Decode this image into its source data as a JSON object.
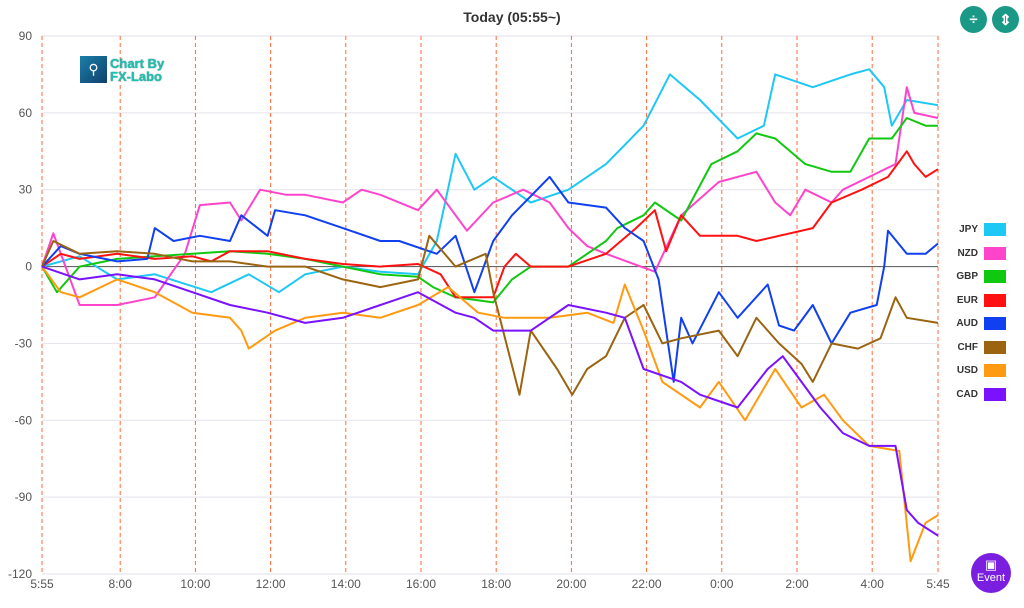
{
  "header": {
    "title": "Today  (05:55~)",
    "buttons": [
      {
        "icon": "compress-vertical-icon",
        "glyph": "÷"
      },
      {
        "icon": "expand-vertical-icon",
        "glyph": "⇕"
      }
    ]
  },
  "logo": {
    "line1": "Chart By",
    "line2": "FX-Labo"
  },
  "event_button": {
    "label": "Event",
    "icon": "calendar-icon"
  },
  "colors": {
    "JPY": "#1ec8f5",
    "NZD": "#ff44cc",
    "GBP": "#11c811",
    "EUR": "#ff1111",
    "AUD": "#1040f0",
    "CHF": "#9a6410",
    "USD": "#ff9a11",
    "CAD": "#7a11ff",
    "grid": "#e2e2ea",
    "vline": "#ff6a3a"
  },
  "chart_data": {
    "type": "line",
    "title": "Today  (05:55~)",
    "xlabel": "",
    "ylabel": "",
    "x_unit": "hours since 05:55",
    "xlim": [
      0,
      23.83
    ],
    "ylim": [
      -120,
      90
    ],
    "yticks": [
      90,
      60,
      30,
      0,
      -30,
      -60,
      -90,
      -120
    ],
    "xticks": [
      {
        "h": 0,
        "label": "5:55"
      },
      {
        "h": 2.08,
        "label": "8:00"
      },
      {
        "h": 4.08,
        "label": "10:00"
      },
      {
        "h": 6.08,
        "label": "12:00"
      },
      {
        "h": 8.08,
        "label": "14:00"
      },
      {
        "h": 10.08,
        "label": "16:00"
      },
      {
        "h": 12.08,
        "label": "18:00"
      },
      {
        "h": 14.08,
        "label": "20:00"
      },
      {
        "h": 16.08,
        "label": "22:00"
      },
      {
        "h": 18.08,
        "label": "0:00"
      },
      {
        "h": 20.08,
        "label": "2:00"
      },
      {
        "h": 22.08,
        "label": "4:00"
      },
      {
        "h": 23.83,
        "label": "5:45"
      }
    ],
    "legend_position": "right",
    "grid": true,
    "series": [
      {
        "name": "JPY",
        "points": [
          [
            0,
            0
          ],
          [
            1,
            4
          ],
          [
            2,
            -5
          ],
          [
            3,
            -3
          ],
          [
            4.5,
            -10
          ],
          [
            5.5,
            -3
          ],
          [
            6.3,
            -10
          ],
          [
            7,
            -3
          ],
          [
            8,
            0
          ],
          [
            9,
            -2
          ],
          [
            10,
            -3
          ],
          [
            10.5,
            10
          ],
          [
            11,
            44
          ],
          [
            11.5,
            30
          ],
          [
            12,
            35
          ],
          [
            13,
            25
          ],
          [
            14,
            30
          ],
          [
            15,
            40
          ],
          [
            16,
            55
          ],
          [
            16.7,
            75
          ],
          [
            17.5,
            65
          ],
          [
            18.5,
            50
          ],
          [
            19.2,
            55
          ],
          [
            19.5,
            75
          ],
          [
            20.5,
            70
          ],
          [
            21.5,
            75
          ],
          [
            22,
            77
          ],
          [
            22.4,
            70
          ],
          [
            22.6,
            55
          ],
          [
            23,
            65
          ],
          [
            23.83,
            63
          ]
        ]
      },
      {
        "name": "NZD",
        "points": [
          [
            0,
            0
          ],
          [
            0.3,
            13
          ],
          [
            1,
            -15
          ],
          [
            2,
            -15
          ],
          [
            3,
            -12
          ],
          [
            3.8,
            5
          ],
          [
            4.2,
            24
          ],
          [
            5,
            25
          ],
          [
            5.3,
            18
          ],
          [
            5.8,
            30
          ],
          [
            6.5,
            28
          ],
          [
            7,
            28
          ],
          [
            8,
            25
          ],
          [
            8.5,
            30
          ],
          [
            9,
            28
          ],
          [
            10,
            22
          ],
          [
            10.5,
            30
          ],
          [
            11,
            20
          ],
          [
            11.3,
            14
          ],
          [
            12,
            25
          ],
          [
            12.8,
            30
          ],
          [
            13.5,
            25
          ],
          [
            14,
            15
          ],
          [
            14.5,
            8
          ],
          [
            15,
            5
          ],
          [
            16.3,
            -2
          ],
          [
            17,
            20
          ],
          [
            18,
            33
          ],
          [
            19,
            37
          ],
          [
            19.5,
            25
          ],
          [
            19.9,
            20
          ],
          [
            20.3,
            30
          ],
          [
            21,
            25
          ],
          [
            21.3,
            30
          ],
          [
            22,
            35
          ],
          [
            22.7,
            40
          ],
          [
            23,
            70
          ],
          [
            23.2,
            60
          ],
          [
            23.83,
            58
          ]
        ]
      },
      {
        "name": "GBP",
        "points": [
          [
            0,
            0
          ],
          [
            0.4,
            -10
          ],
          [
            1,
            0
          ],
          [
            2,
            3
          ],
          [
            3,
            4
          ],
          [
            4,
            5
          ],
          [
            5,
            6
          ],
          [
            6,
            5
          ],
          [
            7,
            3
          ],
          [
            8,
            0
          ],
          [
            9,
            -3
          ],
          [
            10,
            -4
          ],
          [
            10.4,
            -8
          ],
          [
            11,
            -12
          ],
          [
            12,
            -14
          ],
          [
            12.5,
            -5
          ],
          [
            13,
            0
          ],
          [
            14,
            0
          ],
          [
            15,
            10
          ],
          [
            15.3,
            15
          ],
          [
            16,
            20
          ],
          [
            16.3,
            25
          ],
          [
            17,
            18
          ],
          [
            17.8,
            40
          ],
          [
            18.5,
            45
          ],
          [
            19,
            52
          ],
          [
            19.5,
            50
          ],
          [
            20.3,
            40
          ],
          [
            21,
            37
          ],
          [
            21.5,
            37
          ],
          [
            22,
            50
          ],
          [
            22.6,
            50
          ],
          [
            23,
            58
          ],
          [
            23.5,
            55
          ],
          [
            23.83,
            55
          ]
        ]
      },
      {
        "name": "EUR",
        "points": [
          [
            0,
            0
          ],
          [
            0.5,
            5
          ],
          [
            1,
            3
          ],
          [
            2,
            5
          ],
          [
            3,
            3
          ],
          [
            4,
            4
          ],
          [
            4.5,
            2
          ],
          [
            5,
            6
          ],
          [
            6,
            6
          ],
          [
            7,
            3
          ],
          [
            8,
            1
          ],
          [
            9,
            0
          ],
          [
            10,
            1
          ],
          [
            10.6,
            -3
          ],
          [
            11,
            -12
          ],
          [
            12,
            -12
          ],
          [
            12.3,
            0
          ],
          [
            12.6,
            5
          ],
          [
            13,
            0
          ],
          [
            14,
            0
          ],
          [
            15,
            5
          ],
          [
            15.8,
            15
          ],
          [
            16.3,
            22
          ],
          [
            16.6,
            6
          ],
          [
            17,
            20
          ],
          [
            17.5,
            12
          ],
          [
            18.5,
            12
          ],
          [
            19,
            10
          ],
          [
            20.5,
            15
          ],
          [
            21,
            25
          ],
          [
            21.8,
            30
          ],
          [
            22.5,
            35
          ],
          [
            23,
            45
          ],
          [
            23.2,
            40
          ],
          [
            23.5,
            35
          ],
          [
            23.83,
            38
          ]
        ]
      },
      {
        "name": "AUD",
        "points": [
          [
            0,
            0
          ],
          [
            0.5,
            8
          ],
          [
            1,
            5
          ],
          [
            2,
            2
          ],
          [
            2.8,
            3
          ],
          [
            3,
            15
          ],
          [
            3.5,
            10
          ],
          [
            4.2,
            12
          ],
          [
            5,
            10
          ],
          [
            5.3,
            20
          ],
          [
            6,
            12
          ],
          [
            6.2,
            22
          ],
          [
            7,
            20
          ],
          [
            8,
            15
          ],
          [
            9,
            10
          ],
          [
            9.5,
            10
          ],
          [
            10.5,
            5
          ],
          [
            11,
            12
          ],
          [
            11.5,
            -10
          ],
          [
            12,
            10
          ],
          [
            12.5,
            20
          ],
          [
            13.5,
            35
          ],
          [
            14,
            25
          ],
          [
            15,
            23
          ],
          [
            15.5,
            15
          ],
          [
            16,
            10
          ],
          [
            16.4,
            -5
          ],
          [
            16.8,
            -45
          ],
          [
            17,
            -20
          ],
          [
            17.3,
            -30
          ],
          [
            18,
            -10
          ],
          [
            18.5,
            -20
          ],
          [
            19.3,
            -7
          ],
          [
            19.6,
            -23
          ],
          [
            20,
            -25
          ],
          [
            20.5,
            -15
          ],
          [
            21,
            -30
          ],
          [
            21.5,
            -18
          ],
          [
            22.2,
            -15
          ],
          [
            22.4,
            0
          ],
          [
            22.5,
            14
          ],
          [
            23,
            5
          ],
          [
            23.5,
            5
          ],
          [
            23.83,
            9
          ]
        ]
      },
      {
        "name": "CHF",
        "points": [
          [
            0,
            0
          ],
          [
            0.3,
            10
          ],
          [
            1,
            5
          ],
          [
            2,
            6
          ],
          [
            3,
            5
          ],
          [
            4,
            2
          ],
          [
            5,
            2
          ],
          [
            6,
            0
          ],
          [
            7,
            0
          ],
          [
            8,
            -5
          ],
          [
            9,
            -8
          ],
          [
            10,
            -5
          ],
          [
            10.3,
            12
          ],
          [
            11,
            0
          ],
          [
            11.8,
            5
          ],
          [
            12,
            -10
          ],
          [
            12.7,
            -50
          ],
          [
            13,
            -25
          ],
          [
            13.7,
            -40
          ],
          [
            14.1,
            -50
          ],
          [
            14.5,
            -40
          ],
          [
            15,
            -35
          ],
          [
            15.5,
            -20
          ],
          [
            16,
            -15
          ],
          [
            16.5,
            -30
          ],
          [
            17,
            -28
          ],
          [
            18,
            -25
          ],
          [
            18.5,
            -35
          ],
          [
            19,
            -20
          ],
          [
            19.6,
            -30
          ],
          [
            20.2,
            -38
          ],
          [
            20.5,
            -45
          ],
          [
            21,
            -30
          ],
          [
            21.7,
            -32
          ],
          [
            22.3,
            -28
          ],
          [
            22.7,
            -12
          ],
          [
            23,
            -20
          ],
          [
            23.83,
            -22
          ]
        ]
      },
      {
        "name": "USD",
        "points": [
          [
            0,
            0
          ],
          [
            0.5,
            -10
          ],
          [
            1,
            -12
          ],
          [
            2,
            -5
          ],
          [
            3,
            -10
          ],
          [
            4,
            -18
          ],
          [
            5,
            -20
          ],
          [
            5.3,
            -25
          ],
          [
            5.5,
            -32
          ],
          [
            6.2,
            -25
          ],
          [
            7,
            -20
          ],
          [
            8,
            -18
          ],
          [
            9,
            -20
          ],
          [
            10,
            -15
          ],
          [
            10.8,
            -8
          ],
          [
            11.6,
            -18
          ],
          [
            12.3,
            -20
          ],
          [
            13.5,
            -20
          ],
          [
            14.5,
            -18
          ],
          [
            15.2,
            -22
          ],
          [
            15.5,
            -7
          ],
          [
            16,
            -25
          ],
          [
            16.5,
            -45
          ],
          [
            17.5,
            -55
          ],
          [
            18,
            -45
          ],
          [
            18.7,
            -60
          ],
          [
            19.5,
            -40
          ],
          [
            20.2,
            -55
          ],
          [
            20.8,
            -50
          ],
          [
            21.3,
            -60
          ],
          [
            22,
            -70
          ],
          [
            22.8,
            -72
          ],
          [
            23.1,
            -115
          ],
          [
            23.5,
            -100
          ],
          [
            23.83,
            -97
          ]
        ]
      },
      {
        "name": "CAD",
        "points": [
          [
            0,
            0
          ],
          [
            1,
            -5
          ],
          [
            2,
            -3
          ],
          [
            3,
            -5
          ],
          [
            4,
            -10
          ],
          [
            5,
            -15
          ],
          [
            6,
            -18
          ],
          [
            7,
            -22
          ],
          [
            8,
            -20
          ],
          [
            9,
            -15
          ],
          [
            10,
            -10
          ],
          [
            11,
            -18
          ],
          [
            11.5,
            -20
          ],
          [
            12,
            -25
          ],
          [
            13,
            -25
          ],
          [
            14,
            -15
          ],
          [
            15,
            -18
          ],
          [
            15.5,
            -20
          ],
          [
            16,
            -40
          ],
          [
            17,
            -45
          ],
          [
            17.5,
            -50
          ],
          [
            18.5,
            -55
          ],
          [
            19.3,
            -40
          ],
          [
            19.7,
            -35
          ],
          [
            20.2,
            -45
          ],
          [
            20.7,
            -55
          ],
          [
            21.3,
            -65
          ],
          [
            22,
            -70
          ],
          [
            22.7,
            -70
          ],
          [
            23,
            -95
          ],
          [
            23.3,
            -100
          ],
          [
            23.83,
            -105
          ]
        ]
      }
    ]
  }
}
